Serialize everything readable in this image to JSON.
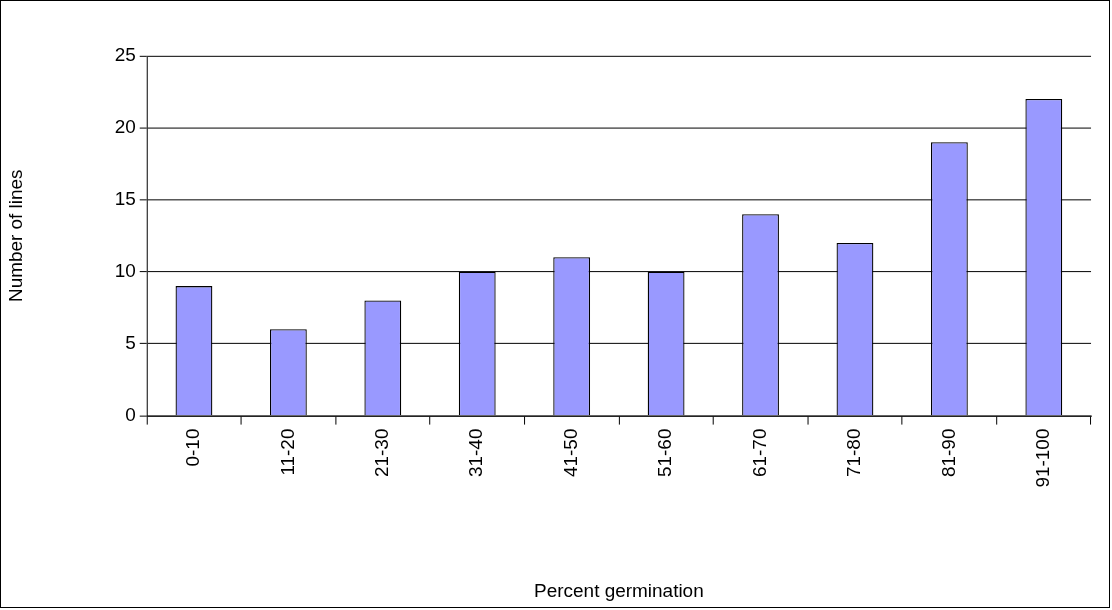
{
  "chart_data": {
    "type": "bar",
    "xlabel": "Percent germination",
    "ylabel": "Number of lines",
    "categories": [
      "0-10",
      "11-20",
      "21-30",
      "31-40",
      "41-50",
      "51-60",
      "61-70",
      "71-80",
      "81-90",
      "91-100"
    ],
    "values": [
      9,
      6,
      8,
      10,
      11,
      10,
      14,
      12,
      19,
      22
    ],
    "color": "#9999ff",
    "ylim": [
      0,
      25
    ],
    "yticks": [
      0,
      5,
      10,
      15,
      20,
      25
    ],
    "grid": "y",
    "legend": false
  }
}
